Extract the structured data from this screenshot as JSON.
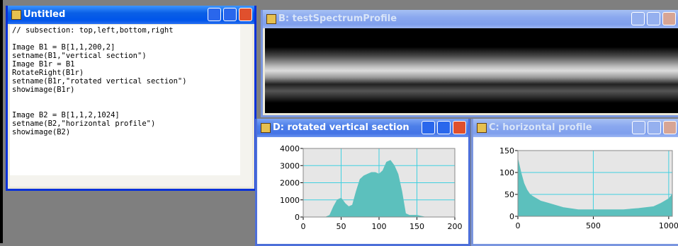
{
  "windows": [
    {
      "title": "Untitled",
      "code": [
        "// subsection: top,left,bottom,right",
        "",
        "Image B1 = B[1,1,200,2]",
        "setname(B1,\"vertical section\")",
        "Image B1r = B1",
        "RotateRight(B1r)",
        "setname(B1r,\"rotated vertical section\")",
        "showimage(B1r)",
        "",
        "",
        "Image B2 = B[1,1,2,1024]",
        "setname(B2,\"horizontal profile\")",
        "showimage(B2)"
      ]
    },
    {
      "title": "B: testSpectrumProfile"
    },
    {
      "title": "D: rotated vertical section",
      "plot": {
        "type": "area",
        "color": "#5cc0bd",
        "x": [
          0,
          30,
          35,
          40,
          45,
          50,
          55,
          60,
          65,
          70,
          75,
          80,
          85,
          90,
          95,
          100,
          105,
          110,
          115,
          120,
          125,
          130,
          135,
          140,
          150,
          160
        ],
        "values": [
          0,
          0,
          100,
          600,
          1000,
          1100,
          800,
          600,
          700,
          1500,
          2200,
          2400,
          2500,
          2600,
          2600,
          2500,
          2700,
          3200,
          3300,
          3000,
          2500,
          1500,
          200,
          100,
          100,
          0
        ],
        "xlim": [
          0,
          200
        ],
        "ylim": [
          0,
          4000
        ],
        "xticks": [
          0,
          50,
          100,
          150,
          200
        ],
        "yticks": [
          0,
          1000,
          2000,
          3000,
          4000
        ]
      }
    },
    {
      "title": "C: horizontal profile",
      "plot": {
        "type": "area",
        "color": "#5cc0bd",
        "x": [
          0,
          20,
          40,
          60,
          80,
          100,
          150,
          200,
          250,
          300,
          400,
          500,
          600,
          700,
          800,
          900,
          950,
          1000,
          1024
        ],
        "values": [
          130,
          100,
          75,
          60,
          50,
          45,
          35,
          30,
          25,
          20,
          15,
          15,
          15,
          15,
          18,
          22,
          30,
          40,
          50
        ],
        "xlim": [
          0,
          1024
        ],
        "ylim": [
          0,
          150
        ],
        "xticks": [
          0,
          500,
          1000
        ],
        "yticks": [
          0,
          50,
          100,
          150
        ]
      }
    }
  ]
}
